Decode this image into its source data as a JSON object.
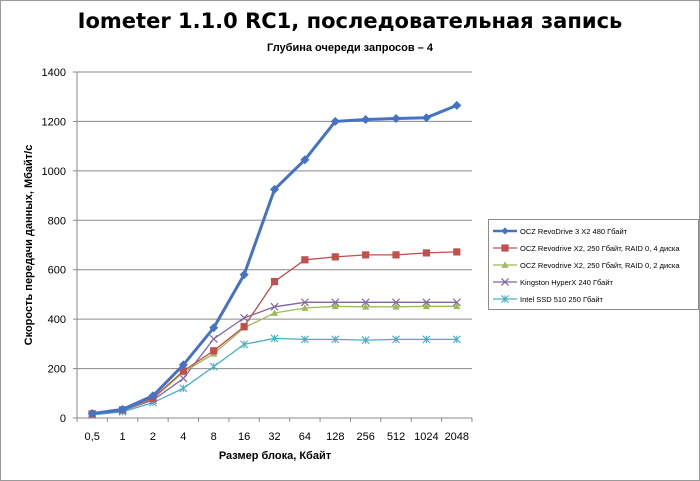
{
  "title": "Iometer 1.1.0 RC1, последовательная запись",
  "subtitle": "Глубина очереди запросов – 4",
  "chart_data": {
    "type": "line",
    "title": "Iometer 1.1.0 RC1, последовательная запись",
    "subtitle": "Глубина очереди запросов – 4",
    "xlabel": "Размер блока, Кбайт",
    "ylabel": "Скорость передачи данных, Мбайт/с",
    "categories": [
      "0,5",
      "1",
      "2",
      "4",
      "8",
      "16",
      "32",
      "64",
      "128",
      "256",
      "512",
      "1024",
      "2048"
    ],
    "ylim": [
      0,
      1400
    ],
    "yticks": [
      0,
      200,
      400,
      600,
      800,
      1000,
      1200,
      1400
    ],
    "grid": "horizontal",
    "legend": "right",
    "series": [
      {
        "name": "OCZ RevoDrive 3 X2 480 Гбайт",
        "color": "#4472c4",
        "marker": "diamond",
        "values": [
          18,
          35,
          90,
          215,
          365,
          580,
          925,
          1045,
          1200,
          1208,
          1212,
          1215,
          1265
        ]
      },
      {
        "name": "OCZ Revodrive X2, 250 Гбайт, RAID 0, 4 диска",
        "color": "#c0504d",
        "marker": "square",
        "values": [
          17,
          33,
          80,
          190,
          272,
          370,
          552,
          640,
          652,
          660,
          660,
          668,
          672
        ]
      },
      {
        "name": "OCZ Revodrive X2, 250 Гбайт, RAID 0, 2 диска",
        "color": "#9bbb59",
        "marker": "triangle",
        "values": [
          16,
          32,
          78,
          185,
          260,
          365,
          425,
          445,
          452,
          450,
          450,
          452,
          452
        ]
      },
      {
        "name": "Kingston HyperX 240 Гбайт",
        "color": "#8064a2",
        "marker": "x",
        "values": [
          15,
          30,
          72,
          160,
          320,
          405,
          450,
          468,
          468,
          468,
          468,
          468,
          468
        ]
      },
      {
        "name": "Intel SSD 510 250 Гбайт",
        "color": "#4bacc6",
        "marker": "star",
        "values": [
          13,
          25,
          62,
          120,
          208,
          298,
          322,
          318,
          318,
          315,
          318,
          318,
          318
        ]
      }
    ]
  }
}
